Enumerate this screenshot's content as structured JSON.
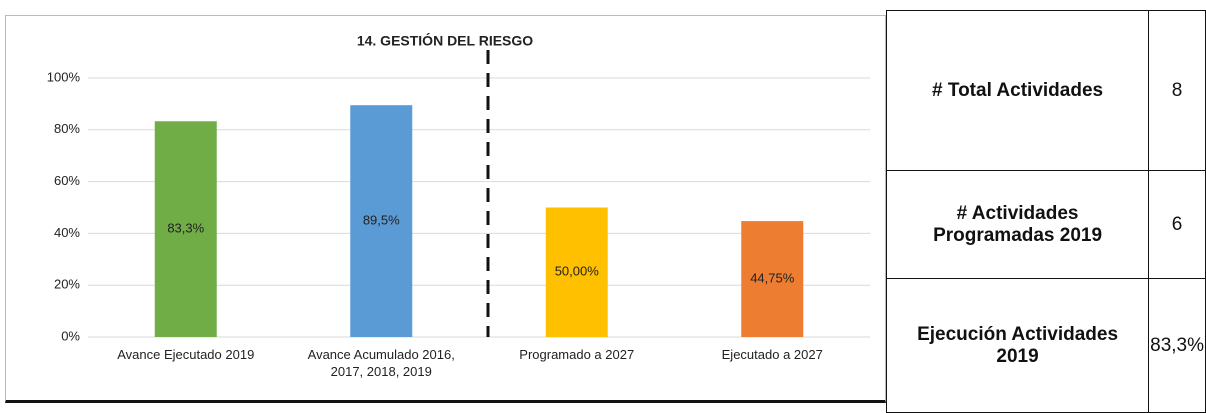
{
  "chart_data": {
    "type": "bar",
    "title": "14. GESTIÓN DEL RIESGO",
    "categories": [
      "Avance Ejecutado 2019",
      "Avance Acumulado 2016, 2017, 2018, 2019",
      "Programado a 2027",
      "Ejecutado a 2027"
    ],
    "values": [
      83.3,
      89.5,
      50,
      44.75
    ],
    "value_labels": [
      "83,3%",
      "89,5%",
      "50,00%",
      "44,75%"
    ],
    "colors": [
      "#70ad47",
      "#5b9bd5",
      "#ffc000",
      "#ed7d31"
    ],
    "ylim": [
      0,
      100
    ],
    "yticks": [
      {
        "value": 0,
        "label": "0%"
      },
      {
        "value": 20,
        "label": "20%"
      },
      {
        "value": 40,
        "label": "40%"
      },
      {
        "value": 60,
        "label": "60%"
      },
      {
        "value": 80,
        "label": "80%"
      },
      {
        "value": 100,
        "label": "100%"
      }
    ],
    "grid": true
  },
  "table": {
    "rows": [
      [
        "# Total Actividades",
        "8"
      ],
      [
        "# Actividades Programadas 2019",
        "6"
      ],
      [
        "Ejecución Actividades 2019",
        "83,3%"
      ]
    ]
  }
}
